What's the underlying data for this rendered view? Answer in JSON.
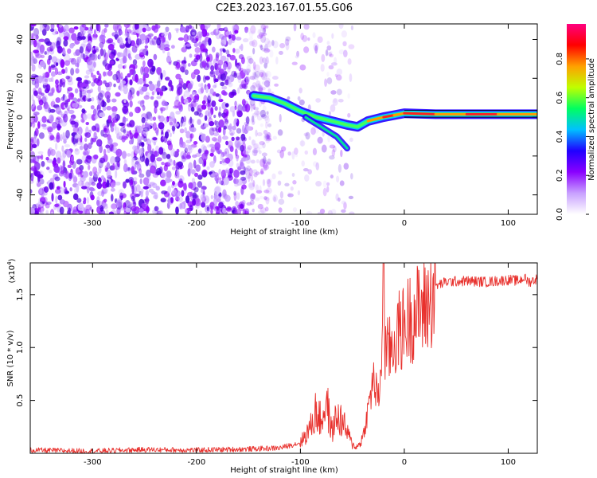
{
  "title": "C2E3.2023.167.01.55.G06",
  "chart_data": [
    {
      "type": "heatmap",
      "title": "",
      "xlabel": "Height of straight line (km)",
      "ylabel": "Frequency (Hz)",
      "xlim": [
        -360,
        128
      ],
      "ylim": [
        -50,
        48
      ],
      "xticks": [
        -300,
        -200,
        -100,
        0,
        100
      ],
      "yticks": [
        -40,
        -20,
        0,
        20,
        40
      ],
      "colorbar": {
        "label": "Normalized spectral amplitude",
        "range": [
          0,
          0.98
        ],
        "ticks": [
          "0.0",
          "0.2",
          "0.4",
          "0.6",
          "0.8"
        ],
        "colormap": [
          "#ffffff",
          "#c8a0ff",
          "#8a00ff",
          "#2000ff",
          "#00c0ff",
          "#00ff60",
          "#c0ff00",
          "#ffa000",
          "#ff0000",
          "#ff0080"
        ]
      },
      "noise_region_x": [
        -360,
        -130
      ],
      "signal_trace": [
        {
          "x": -145,
          "y": 11
        },
        {
          "x": -130,
          "y": 10
        },
        {
          "x": -115,
          "y": 7
        },
        {
          "x": -100,
          "y": 3
        },
        {
          "x": -85,
          "y": 0
        },
        {
          "x": -70,
          "y": -2
        },
        {
          "x": -55,
          "y": -4
        },
        {
          "x": -45,
          "y": -5
        },
        {
          "x": -35,
          "y": -2
        },
        {
          "x": -20,
          "y": 0
        },
        {
          "x": -10,
          "y": 1
        },
        {
          "x": 0,
          "y": 2
        },
        {
          "x": 30,
          "y": 1.5
        },
        {
          "x": 60,
          "y": 1.5
        },
        {
          "x": 90,
          "y": 1.5
        },
        {
          "x": 128,
          "y": 1.5
        }
      ],
      "secondary_trace": [
        {
          "x": -95,
          "y": 0
        },
        {
          "x": -80,
          "y": -5
        },
        {
          "x": -65,
          "y": -10
        },
        {
          "x": -55,
          "y": -16
        }
      ]
    },
    {
      "type": "line",
      "title": "",
      "xlabel": "Height of straight line (km)",
      "ylabel": "SNR (10 * v/v)",
      "yscale_label": "(x10",
      "yscale_exp": "4",
      "yscale_close": ")",
      "xlim": [
        -360,
        128
      ],
      "ylim": [
        0,
        18000
      ],
      "xticks": [
        -300,
        -200,
        -100,
        0,
        100
      ],
      "yticks": [
        5000,
        10000,
        15000
      ],
      "ytick_labels": [
        "0.5",
        "1.0",
        "1.5"
      ],
      "color": "#e8302c",
      "series": [
        {
          "x": [
            -360,
            -300,
            -250,
            -200,
            -150,
            -120,
            -100,
            -90,
            -85,
            -80,
            -75,
            -70,
            -65,
            -60,
            -55,
            -50,
            -45,
            -40,
            -35,
            -30,
            -25,
            -22,
            -20,
            -15,
            -10,
            -5,
            0,
            5,
            10,
            20,
            25,
            30,
            40,
            60,
            80,
            100,
            110,
            115,
            120,
            128
          ],
          "y": [
            300,
            200,
            350,
            300,
            400,
            500,
            1000,
            2500,
            4000,
            3000,
            5000,
            2000,
            3500,
            3000,
            2000,
            800,
            600,
            1500,
            4000,
            7000,
            5000,
            9000,
            10000,
            9500,
            10500,
            11500,
            12000,
            12800,
            13200,
            13800,
            14500,
            15800,
            16200,
            16300,
            16200,
            16400,
            16300,
            16600,
            16200,
            16500
          ]
        }
      ]
    }
  ]
}
